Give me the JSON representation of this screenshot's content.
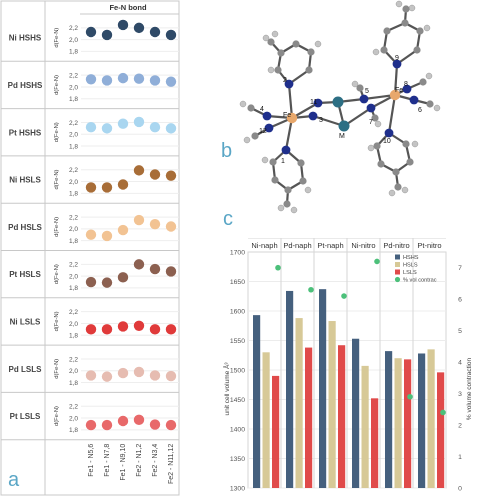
{
  "panel_labels": {
    "a": "a",
    "b": "b",
    "c": "c"
  },
  "colors": {
    "HSHS": "#45607e",
    "HSLS": "#d7c997",
    "LSLS": "#e04a4a",
    "vol": "#4cc07a",
    "Ni HSHS": "#2f4a67",
    "Pd HSHS": "#8faed8",
    "Pt HSHS": "#a9d6f0",
    "Ni HSLS": "#a86d37",
    "Pd HSLS": "#f2c393",
    "Pt HSLS": "#8c6050",
    "Ni LSLS": "#e03a3a",
    "Pd LSLS": "#e6bcb1",
    "Pt LSLS": "#e8696a"
  },
  "chart_data": [
    {
      "type": "scatter",
      "title": "Fe-N bond",
      "ylabel": "d(Fe-N)",
      "ylim": [
        1.7,
        2.3
      ],
      "yticks": [
        "2,2",
        "2,0",
        "1,8"
      ],
      "x_categories": [
        "Fe1 - N5,6",
        "Fe1 - N7,8",
        "Fe1 - N9,10",
        "Fe2 - N1,2",
        "Fe2 - N3,4",
        "Fe2 - N11,12"
      ],
      "panels": [
        {
          "name": "Ni HSHS",
          "values": [
            2.13,
            2.08,
            2.25,
            2.2,
            2.13,
            2.08
          ]
        },
        {
          "name": "Pd HSHS",
          "values": [
            2.13,
            2.11,
            2.15,
            2.14,
            2.11,
            2.09
          ]
        },
        {
          "name": "Pt HSHS",
          "values": [
            2.12,
            2.1,
            2.18,
            2.21,
            2.12,
            2.1
          ]
        },
        {
          "name": "Ni HSLS",
          "values": [
            1.9,
            1.9,
            1.95,
            2.19,
            2.12,
            2.1
          ]
        },
        {
          "name": "Pd HSLS",
          "values": [
            1.9,
            1.88,
            1.98,
            2.15,
            2.08,
            2.04
          ]
        },
        {
          "name": "Pt HSLS",
          "values": [
            1.9,
            1.89,
            1.98,
            2.2,
            2.12,
            2.08
          ]
        },
        {
          "name": "Ni LSLS",
          "values": [
            1.9,
            1.9,
            1.95,
            1.96,
            1.9,
            1.9
          ]
        },
        {
          "name": "Pd LSLS",
          "values": [
            1.92,
            1.9,
            1.96,
            1.98,
            1.92,
            1.91
          ]
        },
        {
          "name": "Pt LSLS",
          "values": [
            1.88,
            1.88,
            1.95,
            1.97,
            1.89,
            1.88
          ]
        }
      ]
    },
    {
      "type": "bar",
      "categories": [
        "Ni-naph",
        "Pd-naph",
        "Pt-naph",
        "Ni-nitro",
        "Pd-nitro",
        "Pt-nitro"
      ],
      "ylabel": "unit cell volume Å³",
      "y2label": "% volume contraction",
      "ylim": [
        1300,
        1700
      ],
      "y2lim": [
        0,
        7.5
      ],
      "yticks": [
        1300,
        1350,
        1400,
        1450,
        1500,
        1550,
        1600,
        1650,
        1700
      ],
      "y2ticks": [
        0,
        1,
        2,
        3,
        4,
        5,
        6,
        7
      ],
      "legend": [
        "HSHS",
        "HSLS",
        "LSLS",
        "% vol contrac"
      ],
      "legend_position": "top-right",
      "series": [
        {
          "name": "HSHS",
          "values": [
            1593,
            1634,
            1637,
            1553,
            1532,
            1528
          ]
        },
        {
          "name": "HSLS",
          "values": [
            1530,
            1588,
            1583,
            1507,
            1520,
            1535
          ]
        },
        {
          "name": "LSLS",
          "values": [
            1490,
            1538,
            1542,
            1452,
            1518,
            1496
          ]
        }
      ],
      "line_series": {
        "name": "% vol contrac",
        "values": [
          7.0,
          6.3,
          6.1,
          7.2,
          2.9,
          2.4
        ]
      }
    }
  ]
}
